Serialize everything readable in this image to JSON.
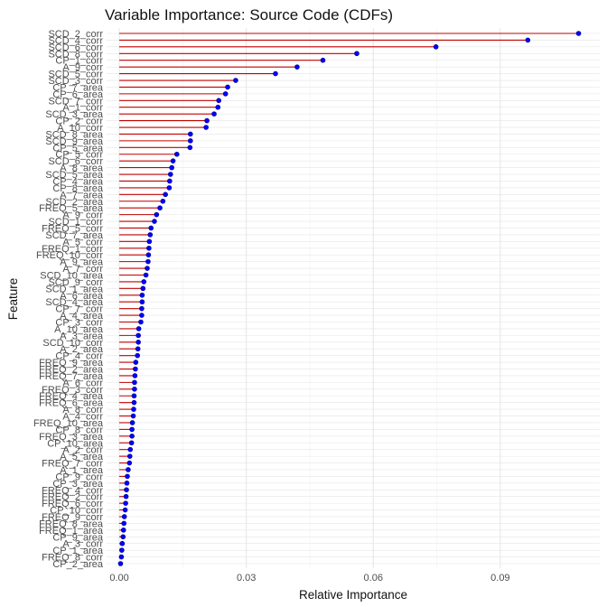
{
  "chart_data": {
    "type": "lollipop",
    "title": "Variable Importance: Source Code (CDFs)",
    "xlabel": "Relative Importance",
    "ylabel": "Feature",
    "xlim": [
      -0.003,
      0.1135
    ],
    "x_ticks": [
      0.0,
      0.03,
      0.06,
      0.09
    ],
    "x_tick_labels": [
      "0.00",
      "0.03",
      "0.06",
      "0.09"
    ],
    "grid": true,
    "colors": {
      "segment": "#c00000",
      "point": "#0000ff",
      "point_stroke": "#00008b",
      "grid": "#e5e5e5",
      "text": "#4d4d4d"
    },
    "categories": [
      "SCD_2_corr",
      "SCD_4_corr",
      "SCD_6_corr",
      "SCD_8_corr",
      "CP_1_corr",
      "A_9_corr",
      "SCD_5_corr",
      "SCD_3_corr",
      "CP_7_area",
      "CP_6_area",
      "SCD_7_corr",
      "A_1_corr",
      "SCD_3_area",
      "CP_2_corr",
      "A_10_corr",
      "SCD_8_area",
      "SCD_9_area",
      "CP_5_area",
      "CP_5_corr",
      "SCD_6_corr",
      "A_8_area",
      "SCD_5_area",
      "CP_4_area",
      "CP_8_area",
      "A_7_area",
      "SCD_2_area",
      "FREQ_5_area",
      "A_9_corr",
      "SCD_1_corr",
      "FREQ_5_corr",
      "SCD_7_area",
      "A_5_corr",
      "FREQ_1_corr",
      "FREQ_10_corr",
      "A_9_area",
      "A_7_corr",
      "SCD_10_area",
      "SCD_9_corr",
      "SCD_1_area",
      "A_6_area",
      "SCD_4_area",
      "CP_7_corr",
      "A_4_area",
      "CP_3_corr",
      "A_10_area",
      "A_3_area",
      "SCD_10_corr",
      "A_2_area",
      "CP_4_corr",
      "FREQ_9_area",
      "FREQ_2_area",
      "FREQ_7_area",
      "A_6_corr",
      "FREQ_3_corr",
      "FREQ_4_area",
      "FREQ_6_area",
      "A_8_corr",
      "A_4_corr",
      "FREQ_10_area",
      "CP_8_corr",
      "FREQ_3_area",
      "CP_10_area",
      "A_2_corr",
      "A_5_area",
      "FREQ_7_corr",
      "A_1_area",
      "CP_9_corr",
      "CP_3_area",
      "FREQ_4_corr",
      "FREQ_2_corr",
      "FREQ_6_corr",
      "CP_10_corr",
      "FREQ_9_corr",
      "FREQ_8_area",
      "FREQ_1_area",
      "CP_9_area",
      "A_3_corr",
      "CP_1_area",
      "FREQ_8_corr",
      "CP_2_area"
    ],
    "values": [
      0.1085,
      0.0965,
      0.0748,
      0.0561,
      0.0481,
      0.042,
      0.0369,
      0.0275,
      0.0256,
      0.0251,
      0.0235,
      0.0233,
      0.0224,
      0.0207,
      0.0205,
      0.0168,
      0.0168,
      0.0167,
      0.0136,
      0.0127,
      0.0124,
      0.0121,
      0.0119,
      0.0118,
      0.0109,
      0.0103,
      0.0096,
      0.0088,
      0.0083,
      0.0075,
      0.0073,
      0.0071,
      0.007,
      0.0069,
      0.0068,
      0.0066,
      0.0063,
      0.0058,
      0.0056,
      0.0054,
      0.0054,
      0.0053,
      0.0053,
      0.0051,
      0.0046,
      0.0045,
      0.0045,
      0.0044,
      0.0043,
      0.0039,
      0.0038,
      0.0037,
      0.0036,
      0.0036,
      0.0035,
      0.0035,
      0.0034,
      0.0033,
      0.0031,
      0.003,
      0.003,
      0.0029,
      0.0026,
      0.0025,
      0.0024,
      0.0021,
      0.0019,
      0.0018,
      0.0017,
      0.0016,
      0.0015,
      0.0014,
      0.0012,
      0.0011,
      0.001,
      0.0009,
      0.0007,
      0.0006,
      0.0005,
      0.0003
    ]
  }
}
